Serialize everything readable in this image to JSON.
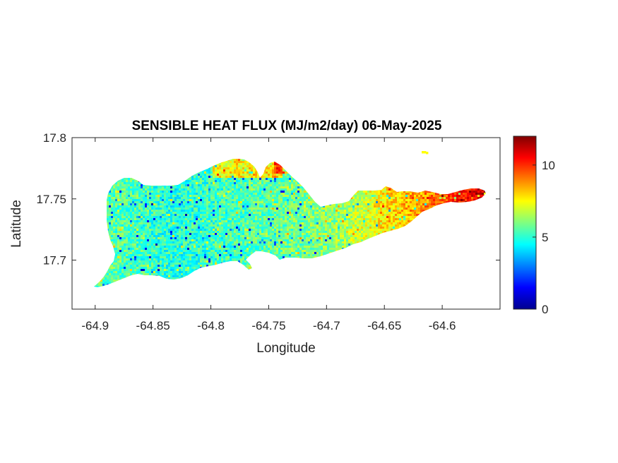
{
  "chart_data": {
    "type": "heatmap",
    "title": "SENSIBLE HEAT FLUX (MJ/m2/day) 06-May-2025",
    "xlabel": "Longitude",
    "ylabel": "Latitude",
    "xlim": [
      -64.92,
      -64.55
    ],
    "ylim": [
      17.66,
      17.8
    ],
    "xticks": [
      -64.9,
      -64.85,
      -64.8,
      -64.75,
      -64.7,
      -64.65,
      -64.6
    ],
    "xtick_labels": [
      "-64.9",
      "-64.85",
      "-64.8",
      "-64.75",
      "-64.7",
      "-64.65",
      "-64.6"
    ],
    "yticks": [
      17.7,
      17.75,
      17.8
    ],
    "ytick_labels": [
      "17.7",
      "17.75",
      "17.8"
    ],
    "colormap": "jet",
    "colorbar": {
      "range": [
        0,
        12
      ],
      "ticks": [
        0,
        5,
        10
      ],
      "tick_labels": [
        "0",
        "5",
        "10"
      ]
    },
    "grid": false,
    "region_trend": [
      {
        "lon": -64.88,
        "value": 5.5
      },
      {
        "lon": -64.83,
        "value": 4.9
      },
      {
        "lon": -64.78,
        "value": 5.3
      },
      {
        "lon": -64.73,
        "value": 5.8
      },
      {
        "lon": -64.69,
        "value": 6.2
      },
      {
        "lon": -64.66,
        "value": 7.3
      },
      {
        "lon": -64.63,
        "value": 8.3
      },
      {
        "lon": -64.6,
        "value": 9.5
      },
      {
        "lon": -64.57,
        "value": 11.0
      }
    ]
  }
}
